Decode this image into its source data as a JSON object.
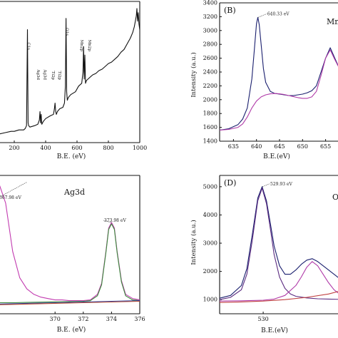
{
  "chart_data": [
    {
      "panel": "A",
      "type": "line",
      "xlabel": "B.E. (eV)",
      "ylabel": "",
      "xlim": [
        100,
        1000
      ],
      "ylim": [
        0,
        100
      ],
      "xticks": [
        200,
        400,
        600,
        800,
        1000
      ],
      "xtick_labels": [
        "200",
        "400",
        "600",
        "800",
        "1000"
      ],
      "yticks": [],
      "line_color": "#111111",
      "series": [
        {
          "x": [
            100,
            140,
            180,
            200,
            230,
            260,
            270,
            278,
            284,
            288,
            292,
            300,
            330,
            350,
            360,
            364,
            368,
            372,
            374,
            376,
            380,
            385,
            400,
            430,
            450,
            456,
            460,
            464,
            468,
            475,
            490,
            510,
            520,
            526,
            530,
            534,
            538,
            545,
            560,
            590,
            610,
            630,
            638,
            642,
            646,
            650,
            654,
            660,
            680,
            700,
            720,
            740,
            760,
            780,
            800,
            820,
            840,
            860,
            880,
            900,
            920,
            940,
            955,
            965,
            972,
            978,
            982,
            986,
            990,
            995,
            1000
          ],
          "y": [
            6,
            7,
            8,
            8,
            9,
            9,
            10,
            12,
            80,
            14,
            12,
            11,
            12,
            13,
            16,
            22,
            14,
            20,
            14,
            13,
            14,
            15,
            17,
            19,
            20,
            24,
            28,
            22,
            20,
            22,
            24,
            25,
            28,
            40,
            88,
            36,
            30,
            32,
            34,
            36,
            40,
            42,
            50,
            68,
            45,
            62,
            42,
            44,
            46,
            48,
            49,
            51,
            52,
            54,
            56,
            57,
            59,
            61,
            64,
            66,
            70,
            74,
            78,
            82,
            86,
            90,
            95,
            86,
            92,
            84,
            80
          ]
        }
      ],
      "annotations": [
        {
          "label": "C1s",
          "x": 284
        },
        {
          "label": "Ag3d",
          "x": 368
        },
        {
          "label": "Ag3d",
          "x": 374
        },
        {
          "label": "Ti2p",
          "x": 458
        },
        {
          "label": "Ti2p",
          "x": 464
        },
        {
          "label": "O1s",
          "x": 530
        },
        {
          "label": "Mn2p",
          "x": 642
        },
        {
          "label": "Mn2p",
          "x": 654
        }
      ]
    },
    {
      "panel": "B",
      "panel_label": "(B)",
      "type": "line",
      "xlabel": "B.E.(eV)",
      "ylabel": "Intensity (a.u.)",
      "xlim": [
        632,
        658
      ],
      "ylim": [
        1400,
        3400
      ],
      "xticks": [
        635,
        640,
        645,
        650,
        655
      ],
      "xtick_labels": [
        "635",
        "640",
        "645",
        "650",
        "655"
      ],
      "yticks": [
        1400,
        1600,
        1800,
        2000,
        2200,
        2400,
        2600,
        2800,
        3000,
        3200,
        3400
      ],
      "ytick_labels": [
        "1400",
        "1600",
        "1800",
        "2000",
        "2200",
        "2400",
        "2600",
        "2800",
        "3000",
        "3200",
        "3400"
      ],
      "title_fragment": "Mn",
      "series": [
        {
          "color": "#1a1f6e",
          "x": [
            632,
            634,
            636,
            637,
            638,
            639,
            639.5,
            640,
            640.3,
            640.6,
            641,
            641.5,
            642,
            643,
            644,
            645,
            646,
            647,
            648,
            649,
            650,
            651,
            652,
            653,
            654,
            655,
            656,
            657,
            658
          ],
          "y": [
            1560,
            1580,
            1640,
            1720,
            1880,
            2300,
            2700,
            3100,
            3190,
            3080,
            2800,
            2450,
            2250,
            2120,
            2090,
            2080,
            2070,
            2060,
            2060,
            2070,
            2080,
            2100,
            2130,
            2200,
            2400,
            2600,
            2750,
            2600,
            2450
          ]
        },
        {
          "color": "#b03aa8",
          "x": [
            632,
            634,
            636,
            637,
            638,
            639,
            640,
            641,
            642,
            643,
            644,
            645,
            646,
            647,
            648,
            649,
            650,
            651,
            652,
            653,
            654,
            655,
            656,
            657,
            658
          ],
          "y": [
            1560,
            1570,
            1600,
            1650,
            1750,
            1880,
            1980,
            2040,
            2070,
            2085,
            2090,
            2085,
            2075,
            2060,
            2045,
            2030,
            2020,
            2020,
            2040,
            2120,
            2350,
            2600,
            2720,
            2580,
            2450
          ]
        }
      ],
      "annotations": [
        {
          "label": "640.33 eV",
          "x": 640.33,
          "y": 3190
        }
      ]
    },
    {
      "panel": "C",
      "type": "line",
      "xlabel": "B.E. (eV)",
      "ylabel": "",
      "xlim": [
        366,
        376
      ],
      "ylim": [
        0,
        100
      ],
      "xticks": [
        370,
        372,
        374,
        376
      ],
      "xtick_labels": [
        "370",
        "372",
        "374",
        "376"
      ],
      "yticks": [],
      "title_fragment": "Ag3d",
      "series": [
        {
          "color": "#c23bb0",
          "x": [
            366,
            366.5,
            367,
            367.5,
            368,
            368.5,
            369,
            369.5,
            370,
            370.5,
            371,
            371.5,
            372,
            372.5,
            373,
            373.3,
            373.6,
            373.8,
            374,
            374.2,
            374.4,
            374.7,
            375,
            375.5,
            376
          ],
          "y": [
            95,
            80,
            45,
            26,
            18,
            14,
            12,
            11,
            10,
            10,
            9.5,
            9.5,
            9.5,
            10,
            14,
            22,
            45,
            62,
            66,
            62,
            45,
            24,
            14,
            11,
            10
          ]
        },
        {
          "color": "#3a8a3a",
          "x": [
            366,
            367,
            368,
            369,
            370,
            371,
            372,
            372.5,
            373,
            373.3,
            373.6,
            373.8,
            374,
            374.2,
            374.4,
            374.7,
            375,
            375.5,
            376
          ],
          "y": [
            8,
            8,
            8.2,
            8.4,
            8.6,
            8.8,
            9,
            9.5,
            13,
            21,
            44,
            61,
            65,
            61,
            44,
            23,
            13,
            10,
            9.5
          ]
        },
        {
          "color": "#3040a0",
          "x": [
            366,
            368,
            370,
            372,
            374,
            376
          ],
          "y": [
            7,
            7.5,
            8,
            8.5,
            9,
            9.5
          ]
        },
        {
          "color": "#b84a30",
          "x": [
            366,
            368,
            370,
            372,
            374,
            376
          ],
          "y": [
            6.5,
            7,
            7.5,
            8,
            8.5,
            9
          ]
        }
      ],
      "annotations": [
        {
          "label": "367.98 eV",
          "x": 367.98,
          "y": 95
        },
        {
          "label": "373.98 eV",
          "x": 373.98,
          "y": 66
        }
      ]
    },
    {
      "panel": "D",
      "panel_label": "(D)",
      "type": "line",
      "xlabel": "B.E.(eV)",
      "ylabel": "Intensity (a.u.)",
      "xlim": [
        526,
        537
      ],
      "ylim": [
        500,
        5400
      ],
      "xticks": [
        530
      ],
      "xtick_labels": [
        "530"
      ],
      "yticks": [
        1000,
        2000,
        3000,
        4000,
        5000
      ],
      "ytick_labels": [
        "1000",
        "2000",
        "3000",
        "4000",
        "5000"
      ],
      "title_fragment": "O",
      "series": [
        {
          "color": "#1a1f6e",
          "x": [
            526,
            527,
            528,
            528.5,
            529,
            529.5,
            529.9,
            530.3,
            530.7,
            531,
            531.5,
            532,
            532.5,
            533,
            533.5,
            534,
            534.5,
            535,
            535.5,
            536,
            536.5,
            537
          ],
          "y": [
            1050,
            1150,
            1500,
            2100,
            3300,
            4600,
            5000,
            4500,
            3600,
            2900,
            2200,
            1900,
            1900,
            2050,
            2250,
            2400,
            2450,
            2350,
            2200,
            2050,
            1900,
            1750
          ]
        },
        {
          "color": "#5a2a80",
          "x": [
            526,
            527,
            528,
            528.5,
            529,
            529.5,
            529.9,
            530.3,
            530.7,
            531,
            531.5,
            532,
            532.5,
            533,
            534,
            535,
            536,
            537
          ],
          "y": [
            1000,
            1080,
            1350,
            1900,
            3100,
            4500,
            4950,
            4400,
            3400,
            2600,
            1800,
            1400,
            1200,
            1120,
            1060,
            1030,
            1020,
            1010
          ]
        },
        {
          "color": "#b03aa8",
          "x": [
            526,
            528,
            530,
            531,
            532,
            533,
            533.5,
            534,
            534.5,
            535,
            535.5,
            536,
            536.5,
            537
          ],
          "y": [
            950,
            960,
            980,
            1020,
            1150,
            1500,
            1800,
            2150,
            2350,
            2200,
            1900,
            1600,
            1350,
            1200
          ]
        },
        {
          "color": "#c04040",
          "x": [
            526,
            528,
            530,
            532,
            534,
            536,
            537
          ],
          "y": [
            900,
            920,
            950,
            1000,
            1080,
            1200,
            1300
          ]
        }
      ],
      "annotations": [
        {
          "label": "529.93 eV",
          "x": 529.93,
          "y": 5000
        }
      ]
    }
  ]
}
